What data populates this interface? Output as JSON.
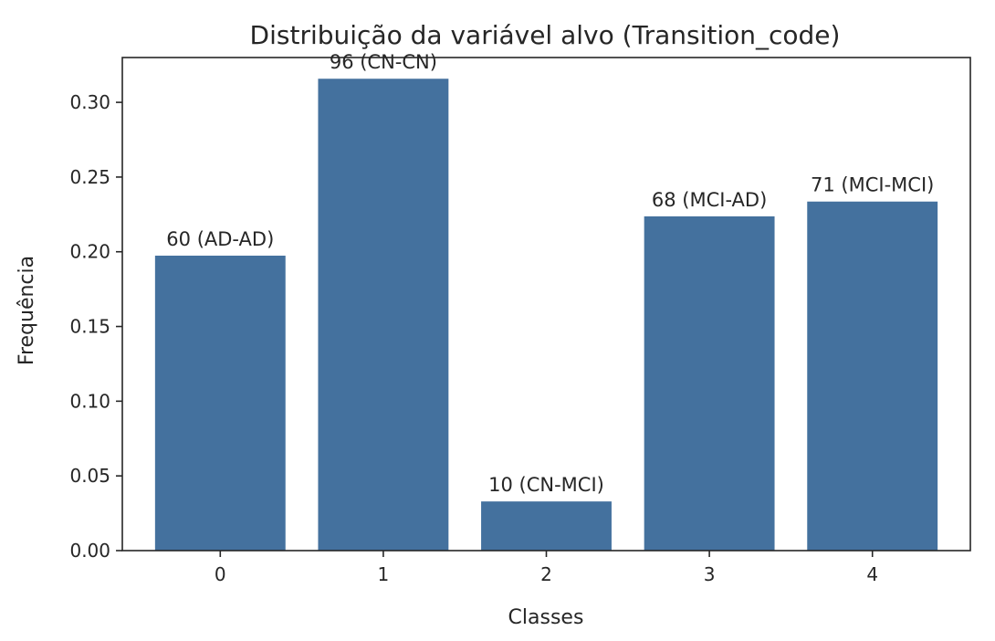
{
  "chart_data": {
    "type": "bar",
    "title": "Distribuição da variável alvo (Transition_code)",
    "xlabel": "Classes",
    "ylabel": "Frequência",
    "categories": [
      "0",
      "1",
      "2",
      "3",
      "4"
    ],
    "values": [
      0.1974,
      0.3158,
      0.0329,
      0.2237,
      0.2336
    ],
    "bar_labels": [
      "60 (AD-AD)",
      "96 (CN-CN)",
      "10 (CN-MCI)",
      "68 (MCI-AD)",
      "71 (MCI-MCI)"
    ],
    "ylim": [
      0,
      0.33
    ],
    "yticks": [
      0.0,
      0.05,
      0.1,
      0.15,
      0.2,
      0.25,
      0.3
    ],
    "ytick_labels": [
      "0.00",
      "0.05",
      "0.10",
      "0.15",
      "0.20",
      "0.25",
      "0.30"
    ],
    "bar_color": "#44719e",
    "grid": false,
    "legend": false
  }
}
